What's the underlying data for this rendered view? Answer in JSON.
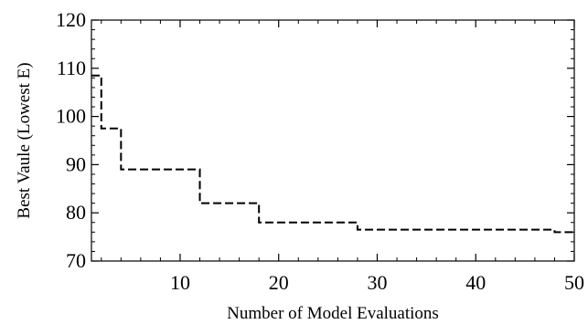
{
  "chart_data": {
    "type": "line",
    "title": "",
    "xlabel": "Number of Model Evaluations",
    "ylabel": "Best Vaule (Lowest E)",
    "xlim": [
      1,
      50
    ],
    "ylim": [
      70,
      120
    ],
    "xticks": [
      10,
      20,
      30,
      40,
      50
    ],
    "yticks": [
      70,
      80,
      90,
      100,
      110,
      120
    ],
    "grid": false,
    "line_style": "dashed",
    "line_color": "#000000",
    "series": [
      {
        "step": "post",
        "x": [
          1,
          2,
          3,
          4,
          11,
          12,
          17,
          18,
          27,
          28,
          47,
          48,
          50
        ],
        "values": [
          108.5,
          97.5,
          97.5,
          89,
          89,
          82,
          82,
          78,
          78,
          76.5,
          76.5,
          76,
          76
        ]
      }
    ]
  }
}
